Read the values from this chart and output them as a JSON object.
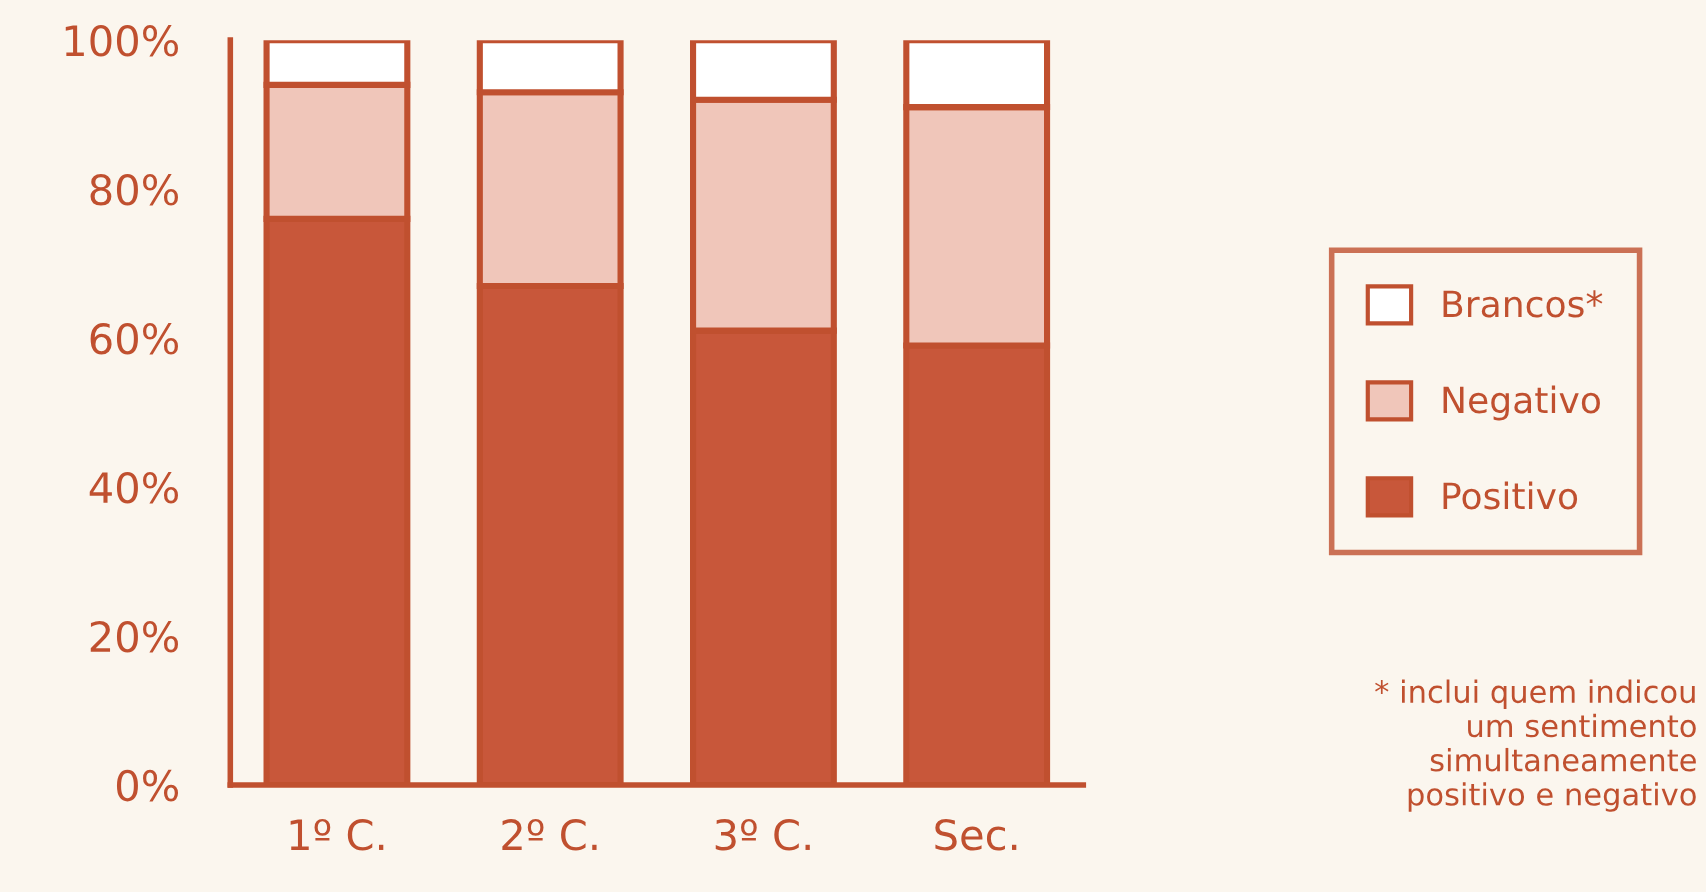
{
  "chart_data": {
    "type": "bar",
    "stacked": true,
    "categories": [
      "1º C.",
      "2º C.",
      "3º C.",
      "Sec."
    ],
    "series": [
      {
        "name": "Positivo",
        "color": "#c8573a",
        "values": [
          76,
          67,
          61,
          59
        ]
      },
      {
        "name": "Negativo",
        "color": "#f0c6ba",
        "values": [
          18,
          26,
          31,
          32
        ]
      },
      {
        "name": "Brancos*",
        "color": "#ffffff",
        "values": [
          6,
          7,
          8,
          9
        ]
      }
    ],
    "ylim": [
      0,
      100
    ],
    "yticks": [
      {
        "value": 0,
        "label": "0%"
      },
      {
        "value": 20,
        "label": "20%"
      },
      {
        "value": 40,
        "label": "40%"
      },
      {
        "value": 60,
        "label": "60%"
      },
      {
        "value": 80,
        "label": "80%"
      },
      {
        "value": 100,
        "label": "100%"
      }
    ],
    "grid": false,
    "legend": "right",
    "annotations": [
      "* inclui quem indicou\num sentimento\nsimultaneamente\npositivo e negativo"
    ]
  }
}
